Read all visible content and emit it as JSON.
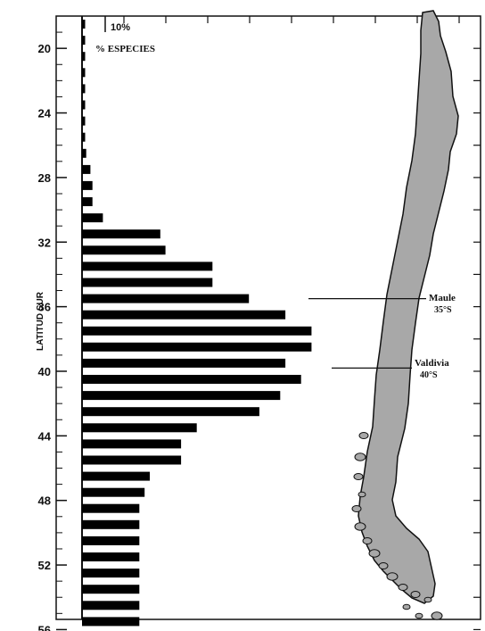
{
  "chart_data": {
    "type": "bar",
    "orientation": "horizontal",
    "xlabel": "% ESPECIES",
    "ylabel": "LATITUD SUR",
    "scale_bar_label": "10%",
    "y_ticks": [
      "20",
      "24",
      "28",
      "32",
      "36",
      "40",
      "44",
      "48",
      "52",
      "56"
    ],
    "ylim": [
      18,
      56
    ],
    "grid": false,
    "bar_color": "#000000",
    "bars": [
      {
        "lat": 18.5,
        "value": 0.3
      },
      {
        "lat": 19.5,
        "value": 0.3
      },
      {
        "lat": 20.5,
        "value": 0.3
      },
      {
        "lat": 21.5,
        "value": 0.3
      },
      {
        "lat": 22.5,
        "value": 0.3
      },
      {
        "lat": 23.5,
        "value": 0.3
      },
      {
        "lat": 24.5,
        "value": 0.3
      },
      {
        "lat": 25.5,
        "value": 0.3
      },
      {
        "lat": 26.5,
        "value": 0.4
      },
      {
        "lat": 27.5,
        "value": 0.8
      },
      {
        "lat": 28.5,
        "value": 1.0
      },
      {
        "lat": 29.5,
        "value": 1.0
      },
      {
        "lat": 30.5,
        "value": 2.0
      },
      {
        "lat": 31.5,
        "value": 7.5
      },
      {
        "lat": 32.5,
        "value": 8.0
      },
      {
        "lat": 33.5,
        "value": 12.5
      },
      {
        "lat": 34.5,
        "value": 12.5
      },
      {
        "lat": 35.5,
        "value": 16.0
      },
      {
        "lat": 36.5,
        "value": 19.5
      },
      {
        "lat": 37.5,
        "value": 22.0
      },
      {
        "lat": 38.5,
        "value": 22.0
      },
      {
        "lat": 39.5,
        "value": 19.5
      },
      {
        "lat": 40.5,
        "value": 21.0
      },
      {
        "lat": 41.5,
        "value": 19.0
      },
      {
        "lat": 42.5,
        "value": 17.0
      },
      {
        "lat": 43.5,
        "value": 11.0
      },
      {
        "lat": 44.5,
        "value": 9.5
      },
      {
        "lat": 45.5,
        "value": 9.5
      },
      {
        "lat": 46.5,
        "value": 6.5
      },
      {
        "lat": 47.5,
        "value": 6.0
      },
      {
        "lat": 48.5,
        "value": 5.5
      },
      {
        "lat": 49.5,
        "value": 5.5
      },
      {
        "lat": 50.5,
        "value": 5.5
      },
      {
        "lat": 51.5,
        "value": 5.5
      },
      {
        "lat": 52.5,
        "value": 5.5
      },
      {
        "lat": 53.5,
        "value": 5.5
      },
      {
        "lat": 54.5,
        "value": 5.5
      },
      {
        "lat": 55.5,
        "value": 5.5
      }
    ],
    "annotations": [
      {
        "name": "Maule",
        "lat_label": "35°S",
        "lat": 35.5
      },
      {
        "name": "Valdivia",
        "lat_label": "40°S",
        "lat": 39.8
      }
    ]
  },
  "map": {
    "fill_color": "#a8a8a8",
    "outline_color": "#111111"
  }
}
